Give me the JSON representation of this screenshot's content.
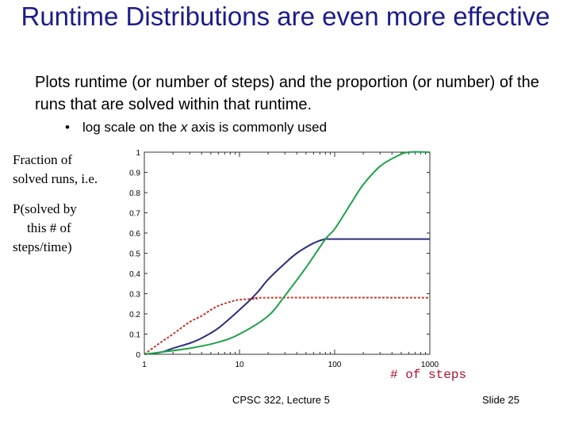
{
  "title": "Runtime Distributions are even more effective",
  "body": "Plots runtime (or number of steps) and the proportion (or number) of the runs that are solved within that runtime.",
  "bullet": {
    "before": "log scale on the ",
    "italic": "x",
    "after": " axis is commonly used"
  },
  "y_label": {
    "line1": "Fraction of",
    "line2": "solved runs, i.e.",
    "line3": "P(solved by",
    "line4": "this # of",
    "line5": "steps/time)"
  },
  "x_unit": "# of steps",
  "footer": {
    "center": "CPSC 322, Lecture 5",
    "right": "Slide 25"
  },
  "chart_data": {
    "type": "line",
    "xscale": "log",
    "xlim": [
      1,
      1000
    ],
    "ylim": [
      0,
      1
    ],
    "x_ticks": [
      "1",
      "10",
      "100",
      "1000"
    ],
    "y_ticks": [
      "0",
      "0.1",
      "0.2",
      "0.3",
      "0.4",
      "0.5",
      "0.6",
      "0.7",
      "0.8",
      "0.9",
      "1"
    ],
    "series": [
      {
        "color": "#c0392b",
        "dashed": true,
        "points": [
          [
            1,
            0.0
          ],
          [
            1.5,
            0.06
          ],
          [
            2,
            0.1
          ],
          [
            3,
            0.16
          ],
          [
            4,
            0.19
          ],
          [
            5,
            0.22
          ],
          [
            6,
            0.24
          ],
          [
            8,
            0.26
          ],
          [
            10,
            0.27
          ],
          [
            15,
            0.275
          ],
          [
            20,
            0.28
          ],
          [
            1000,
            0.28
          ]
        ]
      },
      {
        "color": "#2a2f7c",
        "points": [
          [
            1,
            0.0
          ],
          [
            1.5,
            0.01
          ],
          [
            2,
            0.03
          ],
          [
            3,
            0.055
          ],
          [
            4,
            0.08
          ],
          [
            6,
            0.13
          ],
          [
            10,
            0.22
          ],
          [
            15,
            0.3
          ],
          [
            20,
            0.37
          ],
          [
            30,
            0.45
          ],
          [
            40,
            0.5
          ],
          [
            60,
            0.55
          ],
          [
            80,
            0.57
          ],
          [
            100,
            0.57
          ],
          [
            1000,
            0.57
          ]
        ]
      },
      {
        "color": "#1fa24a",
        "points": [
          [
            1,
            0.0
          ],
          [
            3,
            0.03
          ],
          [
            6,
            0.06
          ],
          [
            10,
            0.1
          ],
          [
            20,
            0.19
          ],
          [
            30,
            0.29
          ],
          [
            50,
            0.43
          ],
          [
            80,
            0.57
          ],
          [
            100,
            0.62
          ],
          [
            150,
            0.75
          ],
          [
            200,
            0.84
          ],
          [
            300,
            0.93
          ],
          [
            450,
            0.98
          ],
          [
            600,
            1.0
          ],
          [
            1000,
            1.0
          ]
        ]
      }
    ]
  }
}
